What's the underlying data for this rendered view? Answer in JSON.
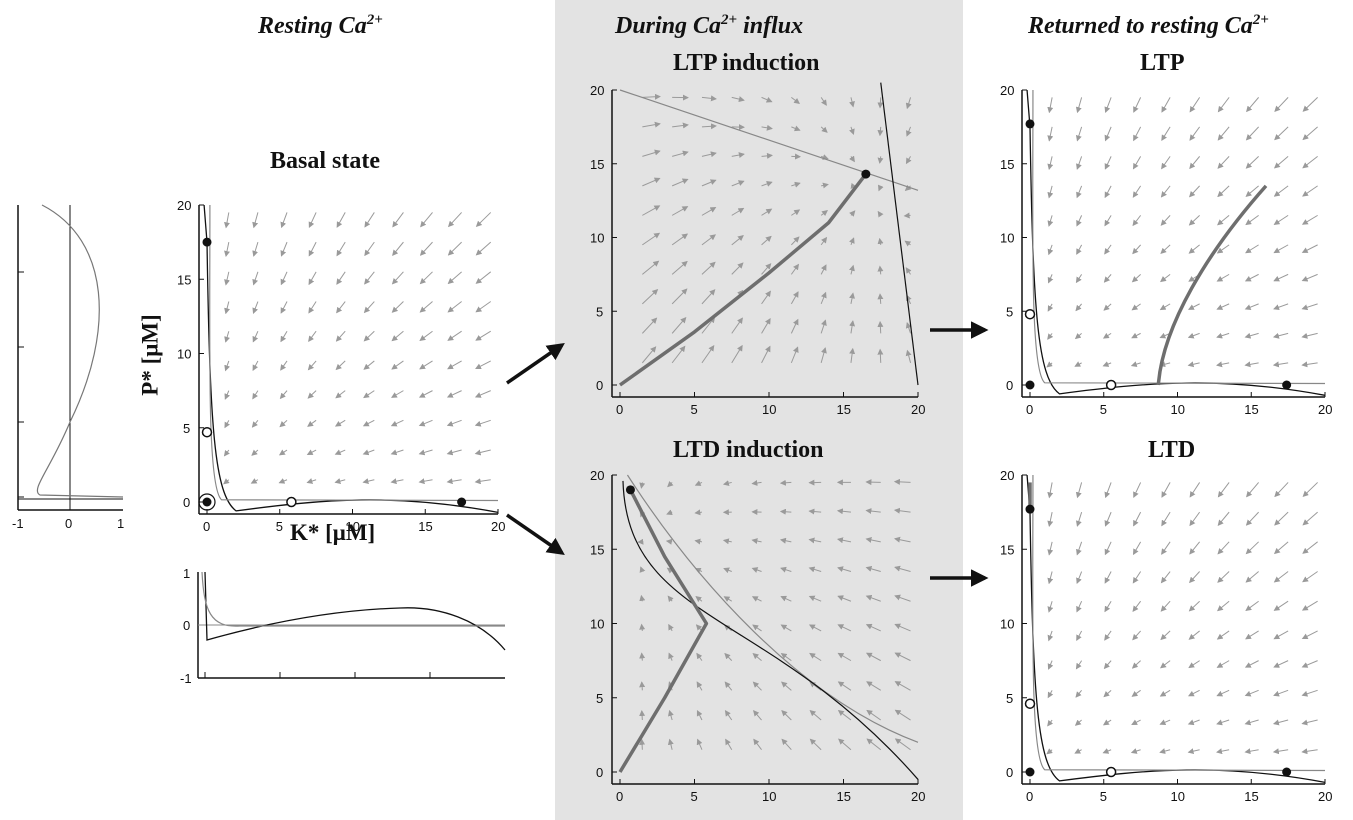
{
  "headers": {
    "resting": "Resting Ca",
    "resting_sup": "2+",
    "influx_pre": "During Ca",
    "influx_sup": "2+",
    "influx_post": " influx",
    "returned": "Returned to resting Ca",
    "returned_sup": "2+"
  },
  "panels": {
    "basal": {
      "title": "Basal state",
      "xlabel": "K* [μM]",
      "ylabel": "P* [μM]"
    },
    "ltp_induction": {
      "title": "LTP induction"
    },
    "ltd_induction": {
      "title": "LTD induction"
    },
    "ltp": {
      "title": "LTP"
    },
    "ltd": {
      "title": "LTD"
    }
  },
  "colors": {
    "shade": "#e3e3e3",
    "arrow_field": "#9a9a9a",
    "trajectory": "#6e6e6e",
    "nullcline_dark": "#111111",
    "nullcline_light": "#8a8a8a"
  },
  "chart_data": [
    {
      "panel": "basal",
      "type": "scatter",
      "xlim": [
        0,
        20
      ],
      "ylim": [
        0,
        20
      ],
      "stable": [
        [
          0,
          17.5
        ],
        [
          17.5,
          0
        ],
        [
          0,
          0
        ]
      ],
      "unstable": [
        [
          0,
          4.7
        ],
        [
          5.8,
          0
        ]
      ]
    },
    {
      "panel": "ltp_induction",
      "type": "line",
      "xlim": [
        0,
        20
      ],
      "ylim": [
        0,
        20
      ],
      "stable": [
        [
          16.5,
          14.3
        ]
      ],
      "trajectory": [
        [
          0,
          0
        ],
        [
          5,
          3.6
        ],
        [
          10,
          7.6
        ],
        [
          14,
          11
        ],
        [
          16.5,
          14.3
        ]
      ]
    },
    {
      "panel": "ltd_induction",
      "type": "line",
      "xlim": [
        0,
        20
      ],
      "ylim": [
        0,
        20
      ],
      "stable": [
        [
          0.7,
          19
        ]
      ],
      "trajectory": [
        [
          0,
          0
        ],
        [
          3,
          5
        ],
        [
          5.8,
          10
        ],
        [
          3,
          14.5
        ],
        [
          0.7,
          19
        ]
      ]
    },
    {
      "panel": "ltp",
      "type": "scatter",
      "xlim": [
        0,
        20
      ],
      "ylim": [
        0,
        20
      ],
      "stable": [
        [
          0,
          17.7
        ],
        [
          17.4,
          0
        ],
        [
          0,
          0
        ]
      ],
      "unstable": [
        [
          0,
          4.8
        ],
        [
          5.5,
          0
        ]
      ]
    },
    {
      "panel": "ltd",
      "type": "scatter",
      "xlim": [
        0,
        20
      ],
      "ylim": [
        0,
        20
      ],
      "stable": [
        [
          0,
          17.7
        ],
        [
          17.4,
          0
        ],
        [
          0,
          0
        ]
      ],
      "unstable": [
        [
          0,
          4.6
        ],
        [
          5.5,
          0
        ]
      ]
    }
  ]
}
